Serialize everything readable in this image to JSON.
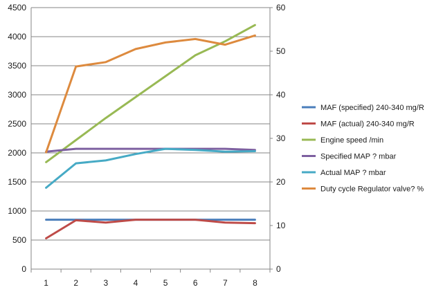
{
  "chart_data": {
    "type": "line",
    "categories": [
      "1",
      "2",
      "3",
      "4",
      "5",
      "6",
      "7",
      "8"
    ],
    "ylim_left": [
      0,
      4500
    ],
    "yticks_left": [
      "0",
      "500",
      "1000",
      "1500",
      "2000",
      "2500",
      "3000",
      "3500",
      "4000",
      "4500"
    ],
    "ylim_right": [
      0,
      60
    ],
    "yticks_right": [
      "0",
      "10",
      "20",
      "30",
      "40",
      "50",
      "60"
    ],
    "grid": true,
    "legend_position": "right",
    "series": [
      {
        "name": "MAF (specified) 240-340  mg/R",
        "axis": "left",
        "color": "#4a7ebb",
        "values": [
          850,
          850,
          850,
          850,
          850,
          850,
          850,
          850
        ]
      },
      {
        "name": "MAF (actual)  240-340  mg/R",
        "axis": "left",
        "color": "#be4b48",
        "values": [
          530,
          840,
          800,
          850,
          850,
          850,
          800,
          790
        ]
      },
      {
        "name": "Engine speed  /min",
        "axis": "left",
        "color": "#98b954",
        "values": [
          1840,
          2220,
          2600,
          2960,
          3320,
          3680,
          3920,
          4200
        ]
      },
      {
        "name": "Specified MAP ?  mbar",
        "axis": "left",
        "color": "#7d60a0",
        "values": [
          2020,
          2070,
          2070,
          2070,
          2070,
          2070,
          2070,
          2050
        ]
      },
      {
        "name": "Actual MAP ?  mbar",
        "axis": "left",
        "color": "#46aac5",
        "values": [
          1400,
          1820,
          1870,
          1980,
          2070,
          2050,
          2020,
          2030
        ]
      },
      {
        "name": "Duty cycle Regulator valve?  %",
        "axis": "right",
        "color": "#dd8a3e",
        "values": [
          26.8,
          46.5,
          47.5,
          50.5,
          52,
          52.8,
          51.5,
          53.6
        ]
      }
    ]
  }
}
